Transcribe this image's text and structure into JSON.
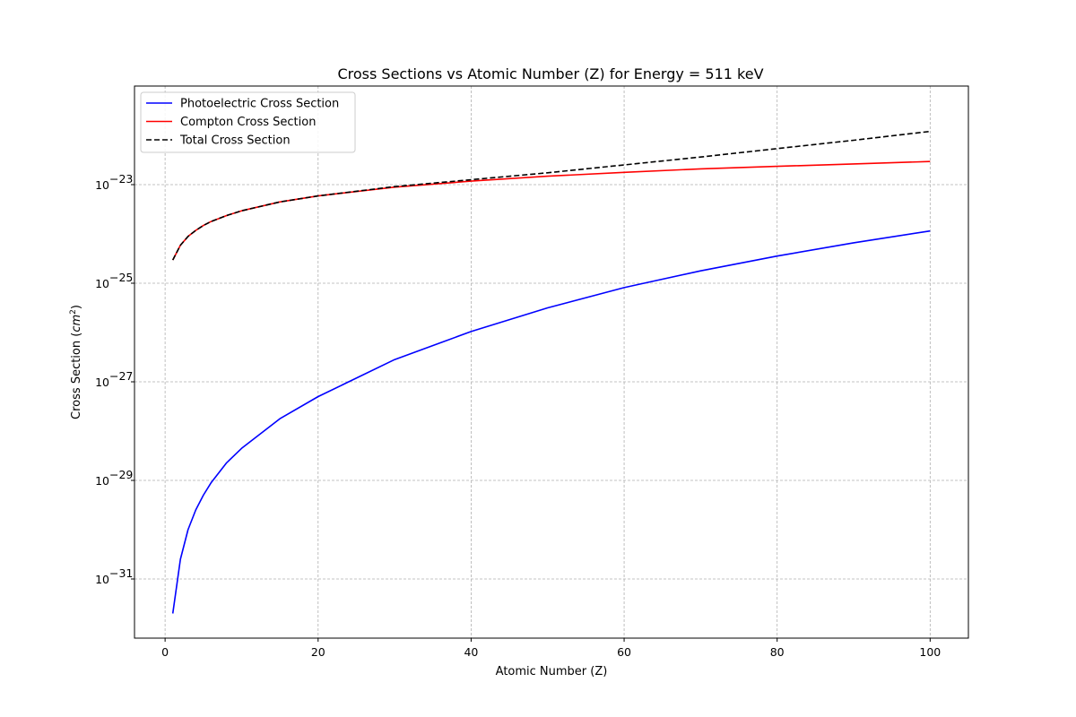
{
  "chart_data": {
    "type": "line",
    "title": "Cross Sections vs Atomic Number (Z) for Energy = 511 keV",
    "xlabel": "Atomic Number (Z)",
    "ylabel_base": "Cross Section (",
    "ylabel_unit": "cm",
    "ylabel_sup": "2",
    "ylabel_close": ")",
    "xlim": [
      -4,
      105
    ],
    "ylim_log10": [
      -32.2,
      -21.0
    ],
    "yscale": "log",
    "grid": true,
    "legend_position": "top-left",
    "x_ticks": [
      0,
      20,
      40,
      60,
      80,
      100
    ],
    "x_tick_labels": [
      "0",
      "20",
      "40",
      "60",
      "80",
      "100"
    ],
    "y_ticks_log10": [
      -23,
      -25,
      -27,
      -29,
      -31
    ],
    "y_tick_base": "10",
    "y_tick_exponents": [
      "−23",
      "−25",
      "−27",
      "−29",
      "−31"
    ],
    "series": [
      {
        "name": "Photoelectric Cross Section",
        "color": "#0000ff",
        "style": "solid",
        "x": [
          1,
          2,
          3,
          4,
          5,
          6,
          8,
          10,
          15,
          20,
          30,
          40,
          50,
          60,
          62,
          70,
          80,
          90,
          100
        ],
        "log10_y": [
          -31.7,
          -30.6,
          -30.0,
          -29.6,
          -29.3,
          -29.05,
          -28.65,
          -28.35,
          -27.75,
          -27.3,
          -26.55,
          -25.98,
          -25.5,
          -25.09,
          -25.02,
          -24.75,
          -24.45,
          -24.18,
          -23.94
        ]
      },
      {
        "name": "Compton Cross Section",
        "color": "#ff0000",
        "style": "solid",
        "x": [
          1,
          2,
          3,
          4,
          5,
          6,
          8,
          10,
          15,
          20,
          30,
          40,
          50,
          60,
          70,
          80,
          90,
          100
        ],
        "log10_y": [
          -24.53,
          -24.23,
          -24.05,
          -23.93,
          -23.83,
          -23.75,
          -23.63,
          -23.53,
          -23.35,
          -23.23,
          -23.05,
          -22.93,
          -22.83,
          -22.75,
          -22.68,
          -22.63,
          -22.58,
          -22.53
        ]
      },
      {
        "name": "Total Cross Section",
        "color": "#000000",
        "style": "dashed",
        "x": [
          1,
          2,
          3,
          4,
          5,
          6,
          8,
          10,
          15,
          20,
          30,
          40,
          50,
          60,
          70,
          80,
          90,
          100
        ],
        "log10_y": [
          -24.53,
          -24.23,
          -24.05,
          -23.93,
          -23.83,
          -23.75,
          -23.63,
          -23.53,
          -23.35,
          -23.23,
          -23.04,
          -22.9,
          -22.76,
          -22.6,
          -22.44,
          -22.27,
          -22.1,
          -21.92
        ]
      }
    ]
  }
}
